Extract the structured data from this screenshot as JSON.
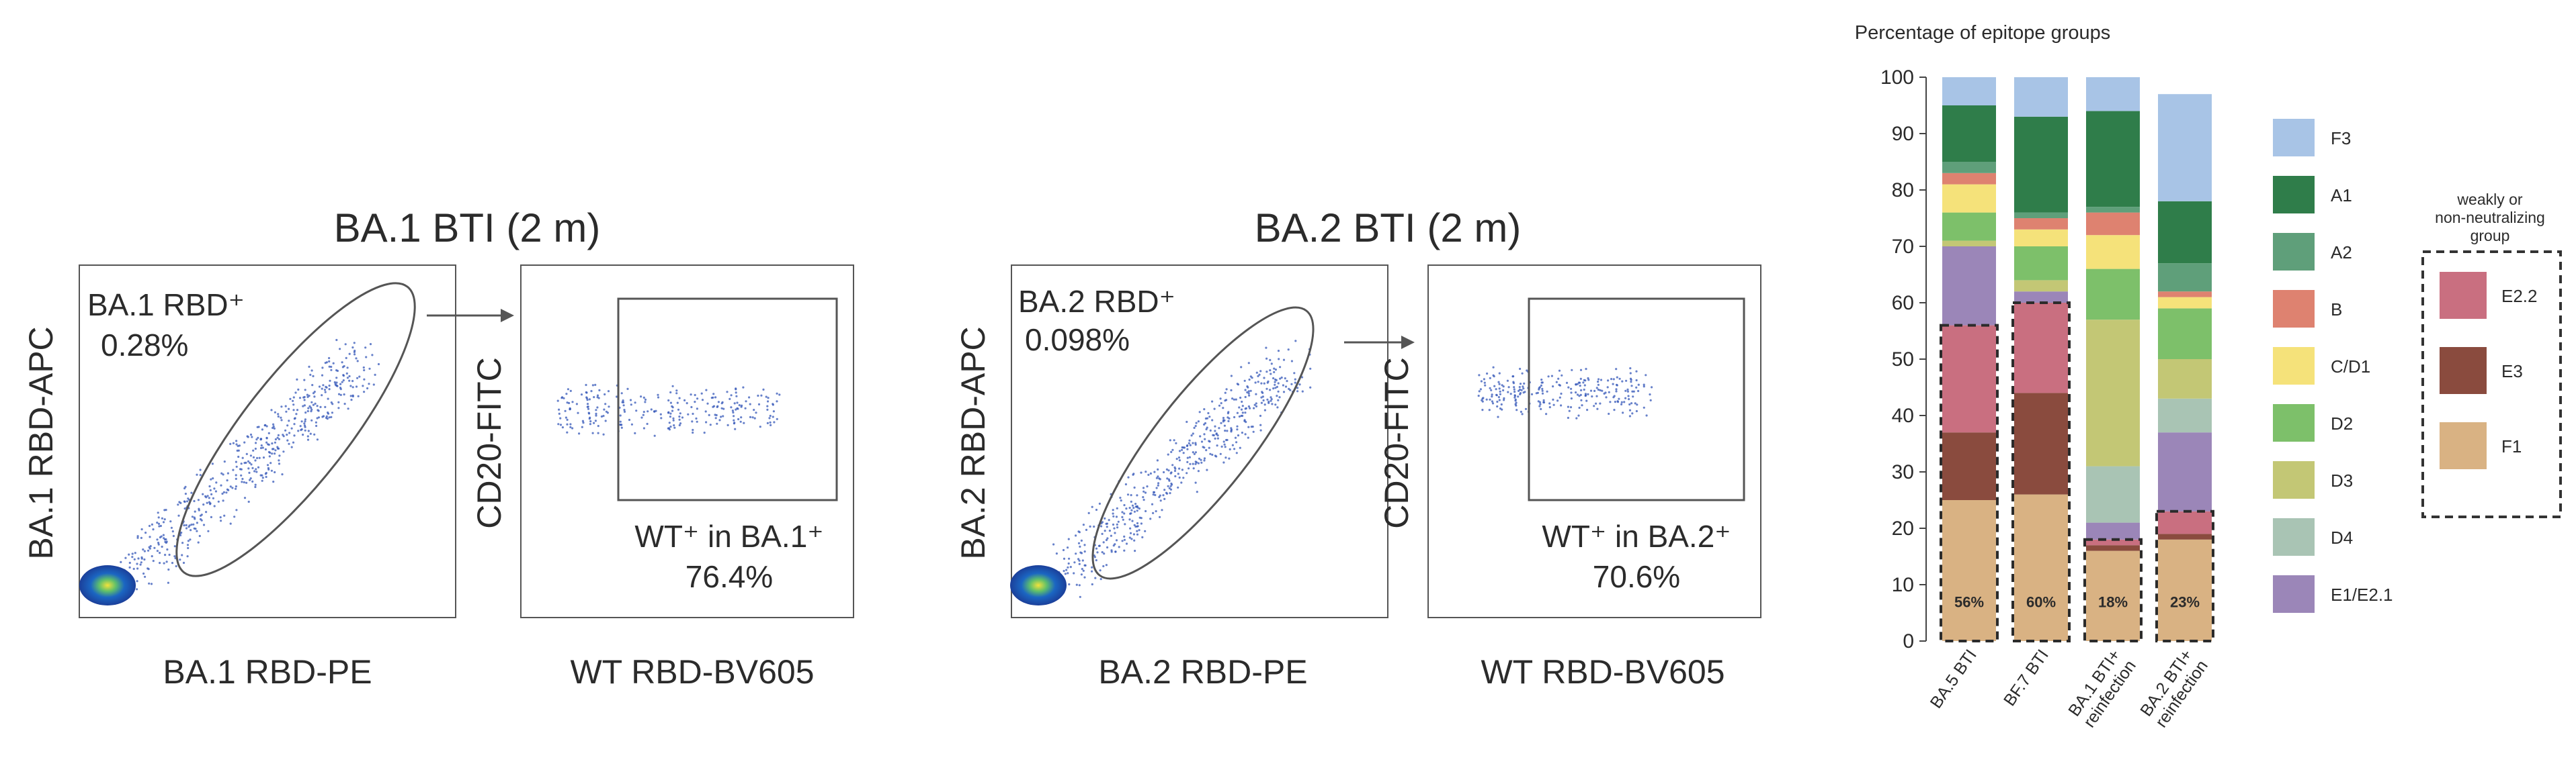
{
  "flow_panels": [
    {
      "title": "BA.1 BTI (2 m)",
      "left_plot": {
        "ylabel": "BA.1 RBD-APC",
        "xlabel": "BA.1 RBD-PE",
        "gate_name": "BA.1 RBD⁺",
        "gate_value": "0.28%"
      },
      "right_plot": {
        "ylabel": "CD20-FITC",
        "xlabel": "WT RBD-BV605",
        "gate_name": "WT⁺ in BA.1⁺",
        "gate_value": "76.4%"
      }
    },
    {
      "title": "BA.2 BTI (2 m)",
      "left_plot": {
        "ylabel": "BA.2 RBD-APC",
        "xlabel": "BA.2 RBD-PE",
        "gate_name": "BA.2 RBD⁺",
        "gate_value": "0.098%"
      },
      "right_plot": {
        "ylabel": "CD20-FITC",
        "xlabel": "WT RBD-BV605",
        "gate_name": "WT⁺ in BA.2⁺",
        "gate_value": "70.6%"
      }
    }
  ],
  "chart_data": {
    "type": "bar",
    "stacked": true,
    "title": "Percentage of epitope groups",
    "categories": [
      "BA.5 BTI",
      "BF.7 BTI",
      "BA.1 BTI+ reinfection",
      "BA.2 BTI+ reinfection"
    ],
    "ylim": [
      0,
      100
    ],
    "yticks": [
      "0",
      "10",
      "20",
      "30",
      "40",
      "50",
      "60",
      "70",
      "80",
      "90",
      "100"
    ],
    "series": [
      {
        "name": "F1",
        "color": "#d9b283",
        "values": [
          25,
          26,
          16,
          18
        ]
      },
      {
        "name": "E3",
        "color": "#8a4b3e",
        "values": [
          12,
          18,
          1,
          1
        ]
      },
      {
        "name": "E2.2",
        "color": "#c96f80",
        "values": [
          19,
          16,
          1,
          4
        ]
      },
      {
        "name": "E1/E2.1",
        "color": "#9b86b8",
        "values": [
          14,
          2,
          3,
          14
        ]
      },
      {
        "name": "D4",
        "color": "#a9c4b4",
        "values": [
          0,
          0,
          10,
          6
        ]
      },
      {
        "name": "D3",
        "color": "#c3c775",
        "values": [
          1,
          2,
          26,
          7
        ]
      },
      {
        "name": "D2",
        "color": "#7dc06a",
        "values": [
          5,
          6,
          9,
          9
        ]
      },
      {
        "name": "C/D1",
        "color": "#f5e27a",
        "values": [
          5,
          3,
          6,
          2
        ]
      },
      {
        "name": "B",
        "color": "#de8270",
        "values": [
          2,
          2,
          4,
          1
        ]
      },
      {
        "name": "A2",
        "color": "#5f9f7a",
        "values": [
          2,
          1,
          1,
          5
        ]
      },
      {
        "name": "A1",
        "color": "#2f7d4a",
        "values": [
          10,
          17,
          17,
          11
        ]
      },
      {
        "name": "F3",
        "color": "#a8c4e6",
        "values": [
          5,
          7,
          6,
          19
        ]
      }
    ],
    "group_percent_labels": [
      "56%",
      "60%",
      "18%",
      "23%"
    ],
    "group_legend_title": "weakly or non-neutralizing group",
    "legend_order": [
      "F3",
      "A1",
      "A2",
      "B",
      "C/D1",
      "D2",
      "D3",
      "D4",
      "E1/E2.1"
    ],
    "group_legend_order": [
      "E2.2",
      "E3",
      "F1"
    ]
  }
}
